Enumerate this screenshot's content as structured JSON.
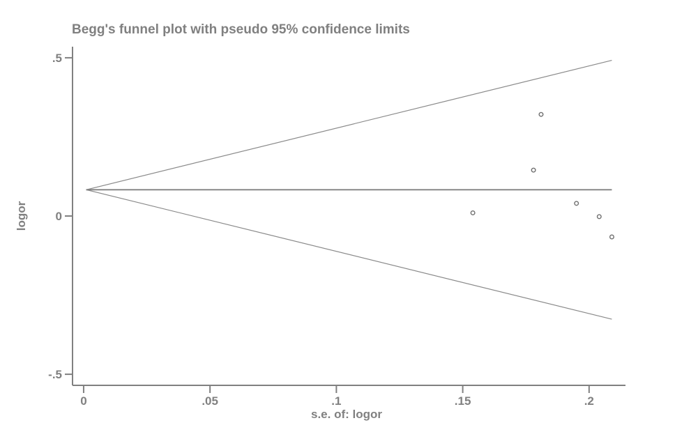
{
  "chart_data": {
    "type": "scatter",
    "subtype": "begg-funnel-plot",
    "title": "Begg's funnel plot with pseudo 95% confidence limits",
    "xlabel": "s.e. of: logor",
    "ylabel": "logor",
    "xlim": [
      -0.0044,
      0.2144
    ],
    "ylim": [
      -0.535,
      0.535
    ],
    "grid": false,
    "legend": null,
    "x_ticks": [
      {
        "value": 0,
        "label": "0"
      },
      {
        "value": 0.05,
        "label": ".05"
      },
      {
        "value": 0.1,
        "label": ".1"
      },
      {
        "value": 0.15,
        "label": ".15"
      },
      {
        "value": 0.2,
        "label": ".2"
      }
    ],
    "y_ticks": [
      {
        "value": 0.5,
        "label": ".5"
      },
      {
        "value": 0,
        "label": "0"
      },
      {
        "value": -0.5,
        "label": "-.5"
      }
    ],
    "pooled_logor": 0.083,
    "confidence_limit_multiplier": 1.96,
    "se_range": [
      0.001,
      0.209
    ],
    "lines": {
      "pooled": {
        "x1": 0.001,
        "y1": 0.083,
        "x2": 0.209,
        "y2": 0.083
      },
      "upper_ci": {
        "x1": 0.001,
        "y1": 0.083,
        "x2": 0.209,
        "y2": 0.492
      },
      "lower_ci": {
        "x1": 0.001,
        "y1": 0.083,
        "x2": 0.209,
        "y2": -0.326
      }
    },
    "points": [
      {
        "se": 0.154,
        "logor": 0.01
      },
      {
        "se": 0.178,
        "logor": 0.145
      },
      {
        "se": 0.181,
        "logor": 0.321
      },
      {
        "se": 0.195,
        "logor": 0.04
      },
      {
        "se": 0.204,
        "logor": -0.002
      },
      {
        "se": 0.209,
        "logor": -0.066
      }
    ],
    "colors": {
      "axis": "#808080",
      "text": "#808080",
      "ci_line": "#8a8a8a",
      "pooled_line": "#808080",
      "marker_stroke": "#707070",
      "background": "#ffffff"
    }
  }
}
